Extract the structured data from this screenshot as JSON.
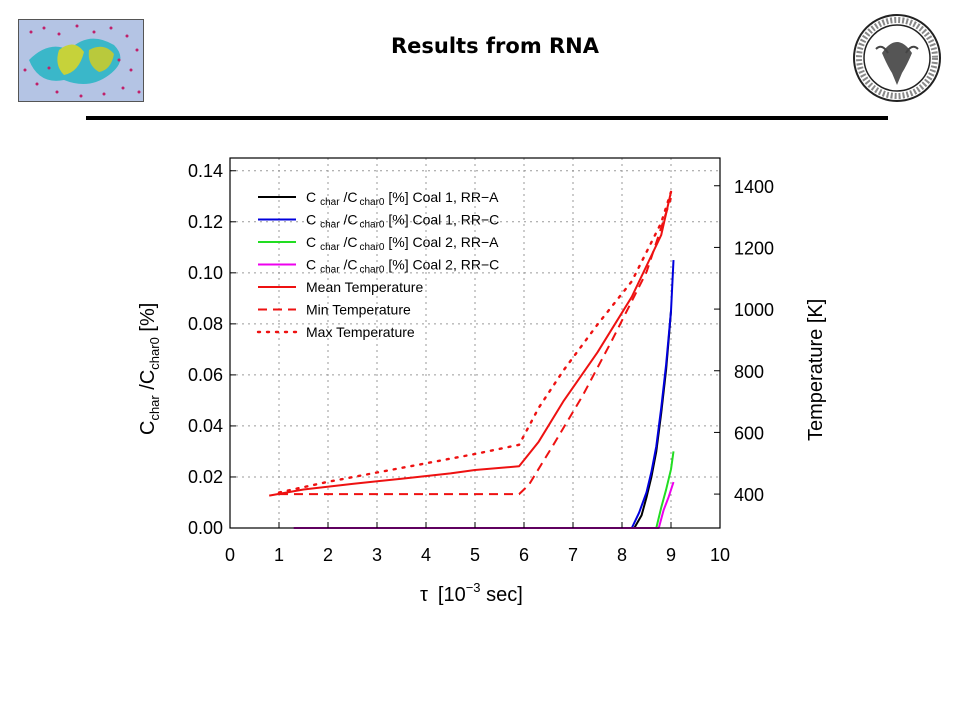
{
  "slide": {
    "title": "Results from RNA"
  },
  "logos": {
    "left_logo": "simulation-render-logo",
    "right_logo": "university-seal-logo",
    "seal_ring_text": "UNIVERSITAS STUDIORUM TERGESTINA"
  },
  "chart_data": {
    "type": "line",
    "xlabel_symbol": "τ",
    "xlabel_text": "[10",
    "xlabel_exp": "−3",
    "xlabel_unit": " sec]",
    "ylabel_left": {
      "p1": "C",
      "p1_sub": "char",
      "p2": " /C",
      "p2_sub": "char0",
      "p3": " [%]"
    },
    "ylabel_right": "Temperature [K]",
    "xlim": [
      0,
      10
    ],
    "ylim_left": [
      0,
      0.145
    ],
    "ylim_right": [
      290,
      1490
    ],
    "x_ticks": [
      "0",
      "1",
      "2",
      "3",
      "4",
      "5",
      "6",
      "7",
      "8",
      "9",
      "10"
    ],
    "y_left_ticks": [
      "0.00",
      "0.02",
      "0.04",
      "0.06",
      "0.08",
      "0.10",
      "0.12",
      "0.14"
    ],
    "y_right_ticks": [
      "400",
      "600",
      "800",
      "1000",
      "1200",
      "1400"
    ],
    "grid": true,
    "legend_position": "top-left",
    "series": [
      {
        "legend": {
          "c1": "C",
          "s1": "char",
          "c2": " /C",
          "s2": "char0",
          "rest": " [%] Coal 1, RR−A"
        },
        "color": "#000000",
        "dash": "solid",
        "axis": "left",
        "x": [
          8.25,
          8.4,
          8.5,
          8.6,
          8.7,
          8.8,
          8.9,
          8.95,
          9.0
        ],
        "y": [
          0.0,
          0.005,
          0.012,
          0.02,
          0.03,
          0.045,
          0.062,
          0.073,
          0.085
        ]
      },
      {
        "legend": {
          "c1": "C",
          "s1": "char",
          "c2": " /C",
          "s2": "char0",
          "rest": " [%] Coal 1, RR−C"
        },
        "color": "#0000dd",
        "dash": "solid",
        "axis": "left",
        "x": [
          8.2,
          8.35,
          8.5,
          8.6,
          8.7,
          8.8,
          8.9,
          9.0,
          9.05
        ],
        "y": [
          0.0,
          0.006,
          0.014,
          0.022,
          0.032,
          0.047,
          0.064,
          0.085,
          0.105
        ]
      },
      {
        "legend": {
          "c1": "C",
          "s1": "char",
          "c2": " /C",
          "s2": "char0",
          "rest": " [%] Coal 2, RR−A"
        },
        "color": "#22dd22",
        "dash": "solid",
        "axis": "left",
        "x": [
          8.7,
          8.8,
          8.9,
          9.0,
          9.05
        ],
        "y": [
          0.0,
          0.008,
          0.015,
          0.023,
          0.03
        ]
      },
      {
        "legend": {
          "c1": "C",
          "s1": "char",
          "c2": " /C",
          "s2": "char0",
          "rest": " [%] Coal 2, RR−C"
        },
        "color": "#ee00ee",
        "dash": "solid",
        "axis": "left",
        "x": [
          1.3,
          8.75,
          8.85,
          8.95,
          9.05
        ],
        "y": [
          0.0,
          0.0,
          0.007,
          0.012,
          0.018
        ]
      },
      {
        "legend": {
          "rest": "Mean Temperature"
        },
        "color": "#ee1111",
        "dash": "solid",
        "axis": "right",
        "x": [
          0.8,
          1.5,
          2.5,
          3.5,
          4.5,
          5.0,
          5.9,
          6.3,
          6.8,
          7.5,
          8.2,
          8.8,
          9.0
        ],
        "y": [
          395,
          415,
          433,
          450,
          467,
          478,
          490,
          570,
          700,
          860,
          1040,
          1240,
          1380
        ]
      },
      {
        "legend": {
          "rest": "Min Temperature"
        },
        "color": "#ee1111",
        "dash": "dashed",
        "axis": "right",
        "x": [
          1.0,
          5.9,
          6.1,
          6.6,
          7.2,
          7.8,
          8.5,
          9.0
        ],
        "y": [
          400,
          400,
          430,
          560,
          720,
          900,
          1120,
          1360
        ]
      },
      {
        "legend": {
          "rest": "Max Temperature"
        },
        "color": "#ee1111",
        "dash": "dotted",
        "axis": "right",
        "x": [
          1.0,
          2.0,
          3.0,
          4.0,
          5.0,
          5.9,
          6.3,
          6.8,
          7.5,
          8.2,
          8.8,
          9.0
        ],
        "y": [
          405,
          440,
          470,
          500,
          530,
          560,
          680,
          800,
          950,
          1090,
          1280,
          1380
        ]
      }
    ]
  }
}
